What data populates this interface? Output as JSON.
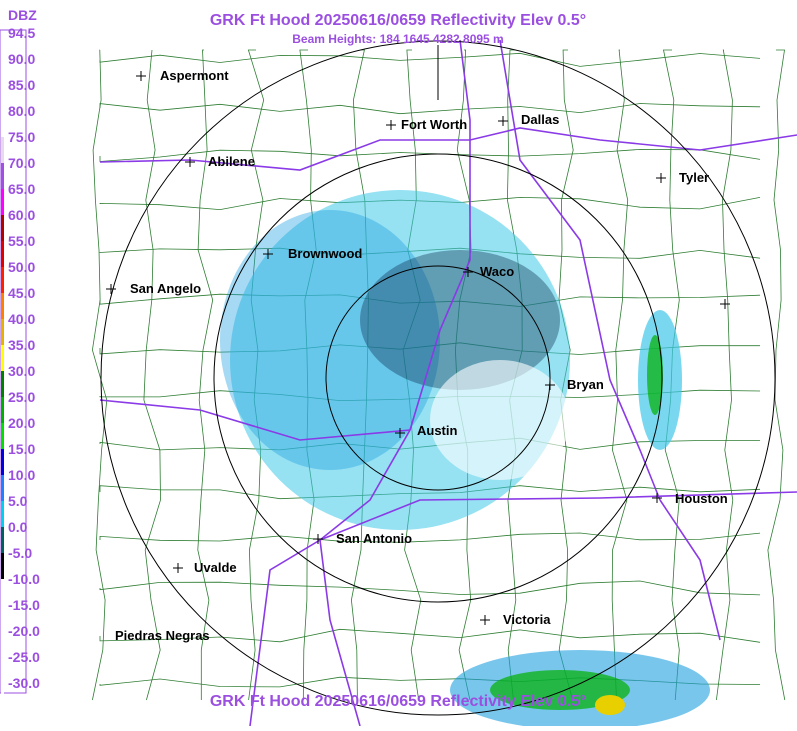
{
  "header": {
    "title": "GRK Ft Hood 20250616/0659 Reflectivity Elev 0.5°",
    "subtitle": "Beam Heights: 184 1645 4282 8095 m",
    "footer_title": "GRK Ft Hood 20250616/0659 Reflectivity Elev 0.5°"
  },
  "legend": {
    "unit": "DBZ",
    "items": [
      {
        "label": "94.5",
        "color": "#ffffff"
      },
      {
        "label": "90.0",
        "color": "#ffffff"
      },
      {
        "label": "85.0",
        "color": "#ffffff"
      },
      {
        "label": "80.0",
        "color": "#ffffff"
      },
      {
        "label": "75.0",
        "color": "#e8d8f0"
      },
      {
        "label": "70.0",
        "color": "#a050e0"
      },
      {
        "label": "65.0",
        "color": "#ff00ff"
      },
      {
        "label": "60.0",
        "color": "#b00000"
      },
      {
        "label": "55.0",
        "color": "#e00000"
      },
      {
        "label": "50.0",
        "color": "#ff2000"
      },
      {
        "label": "45.0",
        "color": "#ff8000"
      },
      {
        "label": "40.0",
        "color": "#e8b000"
      },
      {
        "label": "35.0",
        "color": "#ffff00"
      },
      {
        "label": "30.0",
        "color": "#008000"
      },
      {
        "label": "25.0",
        "color": "#00b000"
      },
      {
        "label": "20.0",
        "color": "#00e000"
      },
      {
        "label": "15.0",
        "color": "#0000e0"
      },
      {
        "label": "10.0",
        "color": "#2080ff"
      },
      {
        "label": "5.0",
        "color": "#00d0f0"
      },
      {
        "label": "0.0",
        "color": "#006060"
      },
      {
        "label": "-5.0",
        "color": "#000000"
      },
      {
        "label": "-10.0",
        "color": "#ffffff"
      },
      {
        "label": "-15.0",
        "color": "#ffffff"
      },
      {
        "label": "-20.0",
        "color": "#ffffff"
      },
      {
        "label": "-25.0",
        "color": "#ffffff"
      },
      {
        "label": "-30.0",
        "color": "#ffffff"
      }
    ]
  },
  "cities": [
    "Aspermont",
    "Fort Worth",
    "Dallas",
    "Abilene",
    "Tyler",
    "Brownwood",
    "Waco",
    "San Angelo",
    "Bryan",
    "Austin",
    "Houston",
    "San Antonio",
    "Uvalde",
    "Victoria",
    "Piedras Negras"
  ]
}
